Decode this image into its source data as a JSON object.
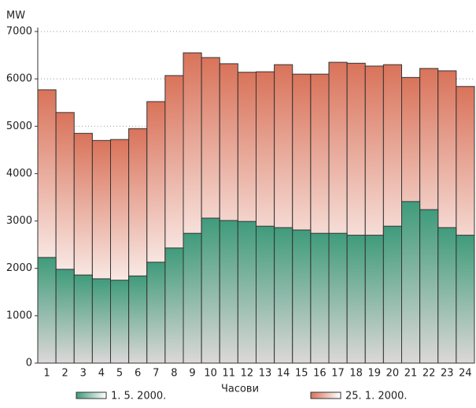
{
  "chart_data": {
    "type": "bar",
    "y_label": "MW",
    "x_label": "Часови",
    "categories": [
      "1",
      "2",
      "3",
      "4",
      "5",
      "6",
      "7",
      "8",
      "9",
      "10",
      "11",
      "12",
      "13",
      "14",
      "15",
      "16",
      "17",
      "18",
      "19",
      "20",
      "21",
      "22",
      "23",
      "24"
    ],
    "series": [
      {
        "name": "25. 1. 2000.",
        "color": "#d9735a",
        "values": [
          5770,
          5290,
          4850,
          4700,
          4720,
          4950,
          5520,
          6070,
          6550,
          6450,
          6320,
          6140,
          6150,
          6300,
          6100,
          6100,
          6350,
          6330,
          6270,
          6300,
          6030,
          6220,
          6170,
          5840
        ]
      },
      {
        "name": "1. 5. 2000.",
        "color": "#3f9b7b",
        "values": [
          2230,
          1980,
          1860,
          1780,
          1750,
          1840,
          2130,
          2430,
          2740,
          3060,
          3010,
          2990,
          2890,
          2860,
          2810,
          2740,
          2740,
          2700,
          2700,
          2890,
          3410,
          3240,
          2860,
          2700
        ]
      }
    ],
    "ylim": [
      0,
      7000
    ],
    "yticks": [
      0,
      1000,
      2000,
      3000,
      4000,
      5000,
      6000,
      7000
    ],
    "grid": true
  }
}
